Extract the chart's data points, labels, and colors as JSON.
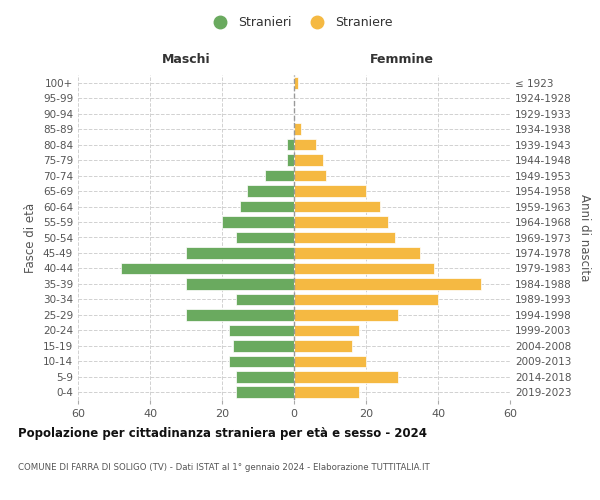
{
  "age_groups": [
    "0-4",
    "5-9",
    "10-14",
    "15-19",
    "20-24",
    "25-29",
    "30-34",
    "35-39",
    "40-44",
    "45-49",
    "50-54",
    "55-59",
    "60-64",
    "65-69",
    "70-74",
    "75-79",
    "80-84",
    "85-89",
    "90-94",
    "95-99",
    "100+"
  ],
  "birth_years": [
    "2019-2023",
    "2014-2018",
    "2009-2013",
    "2004-2008",
    "1999-2003",
    "1994-1998",
    "1989-1993",
    "1984-1988",
    "1979-1983",
    "1974-1978",
    "1969-1973",
    "1964-1968",
    "1959-1963",
    "1954-1958",
    "1949-1953",
    "1944-1948",
    "1939-1943",
    "1934-1938",
    "1929-1933",
    "1924-1928",
    "≤ 1923"
  ],
  "males": [
    16,
    16,
    18,
    17,
    18,
    30,
    16,
    30,
    48,
    30,
    16,
    20,
    15,
    13,
    8,
    2,
    2,
    0,
    0,
    0,
    0
  ],
  "females": [
    18,
    29,
    20,
    16,
    18,
    29,
    40,
    52,
    39,
    35,
    28,
    26,
    24,
    20,
    9,
    8,
    6,
    2,
    0,
    0,
    1
  ],
  "male_color": "#6aaa5f",
  "female_color": "#f5b942",
  "title": "Popolazione per cittadinanza straniera per età e sesso - 2024",
  "subtitle": "COMUNE DI FARRA DI SOLIGO (TV) - Dati ISTAT al 1° gennaio 2024 - Elaborazione TUTTITALIA.IT",
  "xlabel_left": "Maschi",
  "xlabel_right": "Femmine",
  "ylabel_left": "Fasce di età",
  "ylabel_right": "Anni di nascita",
  "legend_males": "Stranieri",
  "legend_females": "Straniere",
  "xlim": 60,
  "background_color": "#ffffff",
  "grid_color": "#cccccc"
}
